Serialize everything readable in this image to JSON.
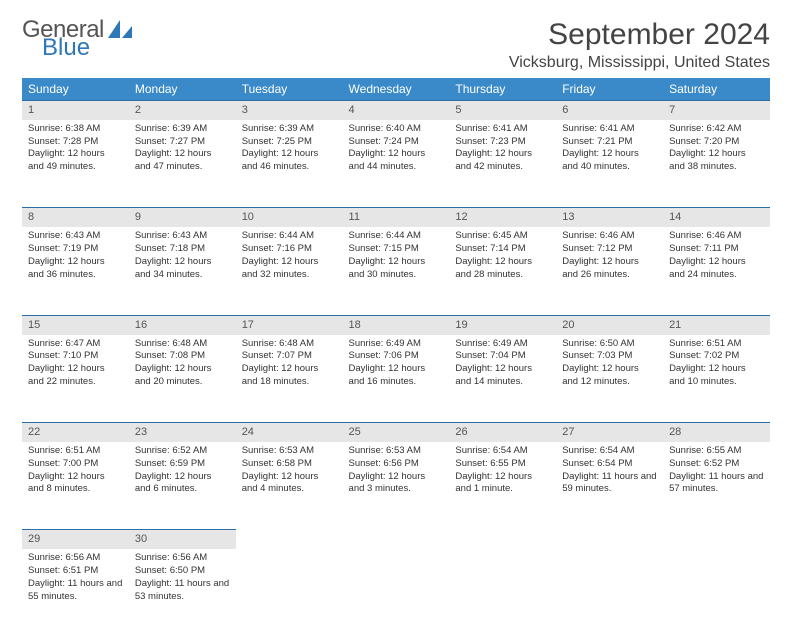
{
  "logo": {
    "part1": "General",
    "part2": "Blue"
  },
  "title": "September 2024",
  "location": "Vicksburg, Mississippi, United States",
  "header_bg": "#3a8ac9",
  "daynum_bg": "#e6e6e6",
  "border_color": "#2e6ea8",
  "weekdays": [
    "Sunday",
    "Monday",
    "Tuesday",
    "Wednesday",
    "Thursday",
    "Friday",
    "Saturday"
  ],
  "weeks": [
    [
      {
        "n": "1",
        "sr": "6:38 AM",
        "ss": "7:28 PM",
        "dl": "12 hours and 49 minutes."
      },
      {
        "n": "2",
        "sr": "6:39 AM",
        "ss": "7:27 PM",
        "dl": "12 hours and 47 minutes."
      },
      {
        "n": "3",
        "sr": "6:39 AM",
        "ss": "7:25 PM",
        "dl": "12 hours and 46 minutes."
      },
      {
        "n": "4",
        "sr": "6:40 AM",
        "ss": "7:24 PM",
        "dl": "12 hours and 44 minutes."
      },
      {
        "n": "5",
        "sr": "6:41 AM",
        "ss": "7:23 PM",
        "dl": "12 hours and 42 minutes."
      },
      {
        "n": "6",
        "sr": "6:41 AM",
        "ss": "7:21 PM",
        "dl": "12 hours and 40 minutes."
      },
      {
        "n": "7",
        "sr": "6:42 AM",
        "ss": "7:20 PM",
        "dl": "12 hours and 38 minutes."
      }
    ],
    [
      {
        "n": "8",
        "sr": "6:43 AM",
        "ss": "7:19 PM",
        "dl": "12 hours and 36 minutes."
      },
      {
        "n": "9",
        "sr": "6:43 AM",
        "ss": "7:18 PM",
        "dl": "12 hours and 34 minutes."
      },
      {
        "n": "10",
        "sr": "6:44 AM",
        "ss": "7:16 PM",
        "dl": "12 hours and 32 minutes."
      },
      {
        "n": "11",
        "sr": "6:44 AM",
        "ss": "7:15 PM",
        "dl": "12 hours and 30 minutes."
      },
      {
        "n": "12",
        "sr": "6:45 AM",
        "ss": "7:14 PM",
        "dl": "12 hours and 28 minutes."
      },
      {
        "n": "13",
        "sr": "6:46 AM",
        "ss": "7:12 PM",
        "dl": "12 hours and 26 minutes."
      },
      {
        "n": "14",
        "sr": "6:46 AM",
        "ss": "7:11 PM",
        "dl": "12 hours and 24 minutes."
      }
    ],
    [
      {
        "n": "15",
        "sr": "6:47 AM",
        "ss": "7:10 PM",
        "dl": "12 hours and 22 minutes."
      },
      {
        "n": "16",
        "sr": "6:48 AM",
        "ss": "7:08 PM",
        "dl": "12 hours and 20 minutes."
      },
      {
        "n": "17",
        "sr": "6:48 AM",
        "ss": "7:07 PM",
        "dl": "12 hours and 18 minutes."
      },
      {
        "n": "18",
        "sr": "6:49 AM",
        "ss": "7:06 PM",
        "dl": "12 hours and 16 minutes."
      },
      {
        "n": "19",
        "sr": "6:49 AM",
        "ss": "7:04 PM",
        "dl": "12 hours and 14 minutes."
      },
      {
        "n": "20",
        "sr": "6:50 AM",
        "ss": "7:03 PM",
        "dl": "12 hours and 12 minutes."
      },
      {
        "n": "21",
        "sr": "6:51 AM",
        "ss": "7:02 PM",
        "dl": "12 hours and 10 minutes."
      }
    ],
    [
      {
        "n": "22",
        "sr": "6:51 AM",
        "ss": "7:00 PM",
        "dl": "12 hours and 8 minutes."
      },
      {
        "n": "23",
        "sr": "6:52 AM",
        "ss": "6:59 PM",
        "dl": "12 hours and 6 minutes."
      },
      {
        "n": "24",
        "sr": "6:53 AM",
        "ss": "6:58 PM",
        "dl": "12 hours and 4 minutes."
      },
      {
        "n": "25",
        "sr": "6:53 AM",
        "ss": "6:56 PM",
        "dl": "12 hours and 3 minutes."
      },
      {
        "n": "26",
        "sr": "6:54 AM",
        "ss": "6:55 PM",
        "dl": "12 hours and 1 minute."
      },
      {
        "n": "27",
        "sr": "6:54 AM",
        "ss": "6:54 PM",
        "dl": "11 hours and 59 minutes."
      },
      {
        "n": "28",
        "sr": "6:55 AM",
        "ss": "6:52 PM",
        "dl": "11 hours and 57 minutes."
      }
    ],
    [
      {
        "n": "29",
        "sr": "6:56 AM",
        "ss": "6:51 PM",
        "dl": "11 hours and 55 minutes."
      },
      {
        "n": "30",
        "sr": "6:56 AM",
        "ss": "6:50 PM",
        "dl": "11 hours and 53 minutes."
      },
      null,
      null,
      null,
      null,
      null
    ]
  ],
  "labels": {
    "sunrise": "Sunrise:",
    "sunset": "Sunset:",
    "daylight": "Daylight:"
  }
}
